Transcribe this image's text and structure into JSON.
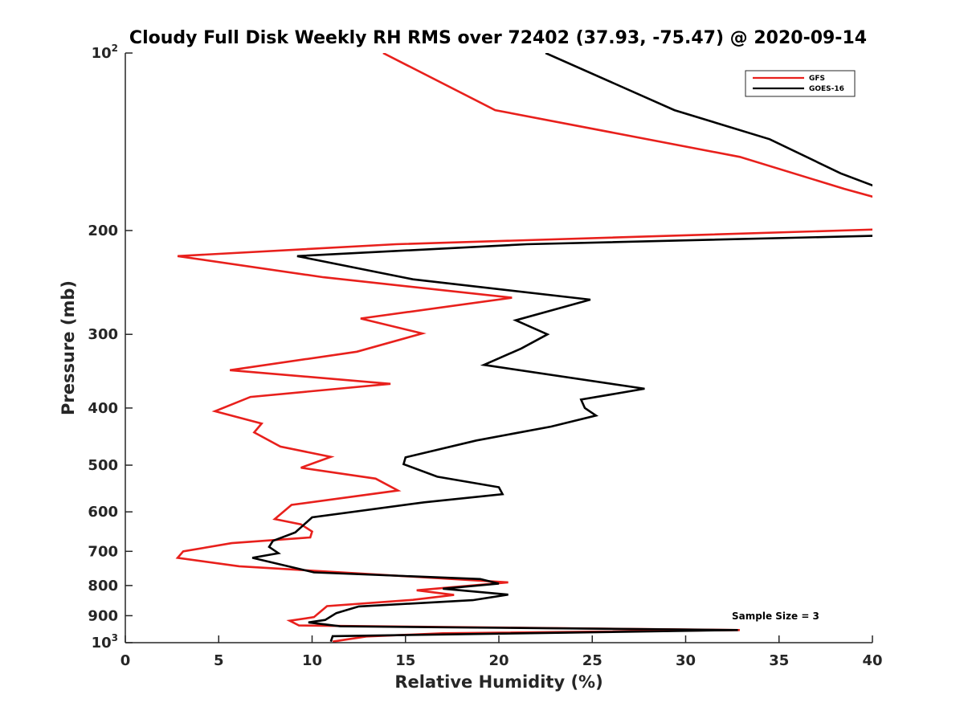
{
  "chart_data": {
    "type": "line",
    "title": "Cloudy Full Disk Weekly RH RMS over 72402 (37.93, -75.47) @ 2020-09-14",
    "xlabel": "Relative Humidity (%)",
    "ylabel": "Pressure (mb)",
    "xlim": [
      0,
      40
    ],
    "ylim": [
      100,
      1000
    ],
    "yscale": "log",
    "y_reversed": true,
    "x_ticks": [
      "0",
      "5",
      "10",
      "15",
      "20",
      "25",
      "30",
      "35",
      "40"
    ],
    "y_ticks": [
      {
        "value": 100,
        "base": "10",
        "exp": "2"
      },
      {
        "value": 200,
        "label": "200"
      },
      {
        "value": 300,
        "label": "300"
      },
      {
        "value": 400,
        "label": "400"
      },
      {
        "value": 500,
        "label": "500"
      },
      {
        "value": 600,
        "label": "600"
      },
      {
        "value": 700,
        "label": "700"
      },
      {
        "value": 800,
        "label": "800"
      },
      {
        "value": 900,
        "label": "900"
      },
      {
        "value": 1000,
        "base": "10",
        "exp": "3"
      }
    ],
    "legend_position": "top-right",
    "grid": false,
    "annotation": "Sample Size = 3",
    "series": [
      {
        "name": "GFS",
        "color": "#e8201c",
        "points": [
          [
            13.8,
            100
          ],
          [
            19.8,
            125
          ],
          [
            32.9,
            150
          ],
          [
            38.5,
            170
          ],
          [
            40.5,
            177
          ],
          [
            40.5,
            199
          ],
          [
            14.5,
            211
          ],
          [
            2.8,
            221
          ],
          [
            10.6,
            240
          ],
          [
            20.7,
            260
          ],
          [
            12.6,
            282
          ],
          [
            15.9,
            299
          ],
          [
            12.4,
            321
          ],
          [
            5.6,
            345
          ],
          [
            14.2,
            364
          ],
          [
            6.7,
            383
          ],
          [
            4.8,
            405
          ],
          [
            7.3,
            425
          ],
          [
            6.9,
            440
          ],
          [
            8.3,
            465
          ],
          [
            11.0,
            484
          ],
          [
            9.4,
            505
          ],
          [
            13.4,
            527
          ],
          [
            14.6,
            552
          ],
          [
            8.9,
            584
          ],
          [
            8.0,
            617
          ],
          [
            9.4,
            630
          ],
          [
            10.0,
            648
          ],
          [
            9.9,
            663
          ],
          [
            5.7,
            678
          ],
          [
            3.1,
            700
          ],
          [
            2.8,
            718
          ],
          [
            6.1,
            742
          ],
          [
            20.5,
            790
          ],
          [
            15.6,
            815
          ],
          [
            17.6,
            830
          ],
          [
            15.4,
            846
          ],
          [
            10.8,
            867
          ],
          [
            10.1,
            905
          ],
          [
            8.8,
            918
          ],
          [
            9.3,
            935
          ],
          [
            32.9,
            952
          ],
          [
            17.0,
            964
          ],
          [
            12.9,
            976
          ],
          [
            11.1,
            996
          ]
        ]
      },
      {
        "name": "GOES-16",
        "color": "#000000",
        "points": [
          [
            22.5,
            100
          ],
          [
            29.4,
            125
          ],
          [
            34.5,
            140
          ],
          [
            38.3,
            160
          ],
          [
            40.5,
            170
          ],
          [
            40.5,
            204
          ],
          [
            21.5,
            211
          ],
          [
            9.2,
            221
          ],
          [
            15.4,
            242
          ],
          [
            24.9,
            262
          ],
          [
            20.9,
            284
          ],
          [
            22.6,
            300
          ],
          [
            21.2,
            317
          ],
          [
            19.2,
            338
          ],
          [
            27.8,
            371
          ],
          [
            24.4,
            387
          ],
          [
            24.6,
            400
          ],
          [
            25.2,
            412
          ],
          [
            22.8,
            430
          ],
          [
            18.8,
            454
          ],
          [
            15.0,
            485
          ],
          [
            14.9,
            498
          ],
          [
            16.7,
            523
          ],
          [
            20.0,
            545
          ],
          [
            20.2,
            560
          ],
          [
            16.0,
            578
          ],
          [
            10.0,
            613
          ],
          [
            9.1,
            650
          ],
          [
            7.9,
            672
          ],
          [
            7.7,
            688
          ],
          [
            8.2,
            705
          ],
          [
            6.8,
            718
          ],
          [
            10.1,
            760
          ],
          [
            19.0,
            780
          ],
          [
            20.0,
            794
          ],
          [
            17.0,
            810
          ],
          [
            20.5,
            829
          ],
          [
            18.6,
            847
          ],
          [
            12.5,
            868
          ],
          [
            11.3,
            891
          ],
          [
            10.7,
            915
          ],
          [
            9.8,
            924
          ],
          [
            11.5,
            938
          ],
          [
            32.8,
            952
          ],
          [
            11.1,
            975
          ],
          [
            11.0,
            996
          ]
        ]
      }
    ]
  }
}
